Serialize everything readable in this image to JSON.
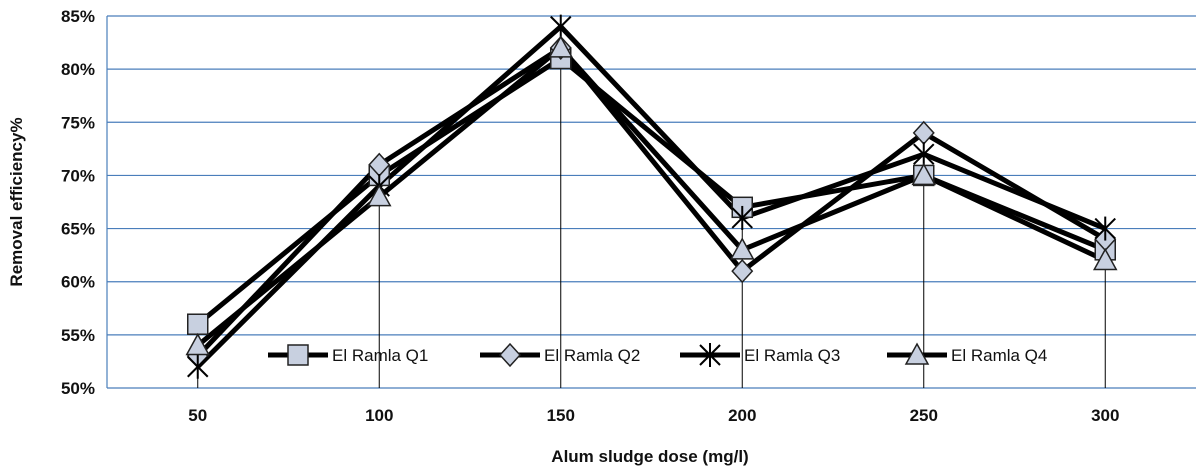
{
  "chart_data": {
    "type": "line",
    "title": "",
    "xlabel": "Alum sludge dose (mg/l)",
    "ylabel": "Removal efficiency%",
    "categories": [
      "50",
      "100",
      "150",
      "200",
      "250",
      "300"
    ],
    "ylim": [
      50,
      85
    ],
    "yticks": [
      "50%",
      "55%",
      "60%",
      "65%",
      "70%",
      "75%",
      "80%",
      "85%"
    ],
    "grid": "horizontal",
    "legend": "inside-bottom",
    "series": [
      {
        "name": "El Ramla Q1",
        "marker": "square",
        "values": [
          56,
          70,
          81,
          67,
          70,
          63
        ]
      },
      {
        "name": "El Ramla Q2",
        "marker": "diamond",
        "values": [
          53,
          71,
          82,
          61,
          74,
          64
        ]
      },
      {
        "name": "El Ramla Q3",
        "marker": "star",
        "values": [
          52,
          69,
          84,
          66,
          72,
          65
        ]
      },
      {
        "name": "El Ramla Q4",
        "marker": "triangle",
        "values": [
          54,
          68,
          82,
          63,
          70,
          62
        ]
      }
    ],
    "colors": {
      "line": "#000000",
      "marker_fill": "#c8d0e0",
      "grid": "#4a7ebb"
    }
  }
}
